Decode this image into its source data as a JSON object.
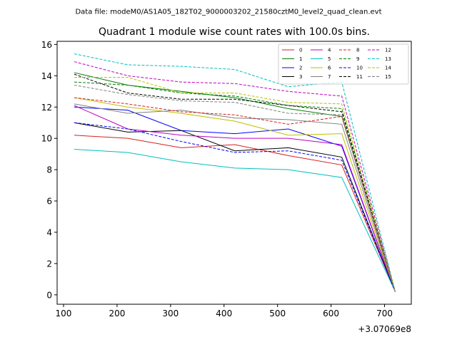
{
  "chart_data": {
    "type": "line",
    "suptitle": "Data file: modeM0/AS1A05_182T02_9000003202_21580cztM0_level2_quad_clean.evt",
    "title": "Quadrant 1 module wise count rates with 100.0s bins.",
    "xlabel": "",
    "ylabel": "",
    "x_offset_label": "+3.07069e8",
    "xlim": [
      88,
      750
    ],
    "ylim": [
      -0.6,
      16.2
    ],
    "x_ticks": [
      100,
      200,
      300,
      400,
      500,
      600,
      700
    ],
    "y_ticks": [
      0,
      2,
      4,
      6,
      8,
      10,
      12,
      14,
      16
    ],
    "x": [
      120,
      220,
      320,
      420,
      520,
      620,
      720
    ],
    "legend_location": "upper right",
    "series": [
      {
        "name": "0",
        "color": "#d62020",
        "dash": "solid",
        "values": [
          10.2,
          10.0,
          9.4,
          9.6,
          8.9,
          8.3,
          0.2
        ]
      },
      {
        "name": "1",
        "color": "#008000",
        "dash": "solid",
        "values": [
          14.2,
          13.4,
          13.0,
          12.6,
          11.9,
          11.4,
          0.2
        ]
      },
      {
        "name": "2",
        "color": "#0000ff",
        "dash": "solid",
        "values": [
          12.0,
          11.8,
          10.5,
          10.3,
          10.6,
          9.5,
          0.2
        ]
      },
      {
        "name": "3",
        "color": "#000000",
        "dash": "solid",
        "values": [
          11.0,
          10.4,
          10.5,
          9.2,
          9.4,
          8.8,
          0.2
        ]
      },
      {
        "name": "4",
        "color": "#bf00bf",
        "dash": "solid",
        "values": [
          12.1,
          10.6,
          10.2,
          10.0,
          10.0,
          9.6,
          0.2
        ]
      },
      {
        "name": "5",
        "color": "#00bfbf",
        "dash": "solid",
        "values": [
          9.3,
          9.1,
          8.5,
          8.1,
          8.0,
          7.5,
          0.2
        ]
      },
      {
        "name": "6",
        "color": "#bfbf00",
        "dash": "solid",
        "values": [
          12.6,
          12.0,
          11.6,
          11.1,
          10.2,
          10.3,
          0.2
        ]
      },
      {
        "name": "7",
        "color": "#808080",
        "dash": "solid",
        "values": [
          12.2,
          11.6,
          11.8,
          11.3,
          11.2,
          10.9,
          0.2
        ]
      },
      {
        "name": "8",
        "color": "#d62020",
        "dash": "dashed",
        "values": [
          12.6,
          12.2,
          11.7,
          11.5,
          10.9,
          11.4,
          0.2
        ]
      },
      {
        "name": "9",
        "color": "#008000",
        "dash": "dashed",
        "values": [
          13.6,
          13.4,
          12.9,
          12.7,
          12.1,
          11.9,
          0.2
        ]
      },
      {
        "name": "10",
        "color": "#0000ff",
        "dash": "dashed",
        "values": [
          11.0,
          10.6,
          9.8,
          9.1,
          9.2,
          8.6,
          0.2
        ]
      },
      {
        "name": "11",
        "color": "#000000",
        "dash": "dashed",
        "values": [
          14.1,
          12.9,
          12.5,
          12.5,
          12.1,
          11.7,
          0.2
        ]
      },
      {
        "name": "12",
        "color": "#bf00bf",
        "dash": "dashed",
        "values": [
          14.9,
          14.0,
          13.6,
          13.5,
          13.0,
          12.7,
          0.2
        ]
      },
      {
        "name": "13",
        "color": "#00bfbf",
        "dash": "dashed",
        "values": [
          15.4,
          14.7,
          14.6,
          14.4,
          13.3,
          13.6,
          0.2
        ]
      },
      {
        "name": "14",
        "color": "#bfbf00",
        "dash": "dashed",
        "values": [
          13.9,
          13.9,
          12.9,
          12.9,
          12.3,
          12.2,
          0.2
        ]
      },
      {
        "name": "15",
        "color": "#808080",
        "dash": "dashed",
        "values": [
          13.4,
          12.8,
          12.4,
          12.3,
          11.6,
          11.5,
          0.2
        ]
      }
    ]
  }
}
